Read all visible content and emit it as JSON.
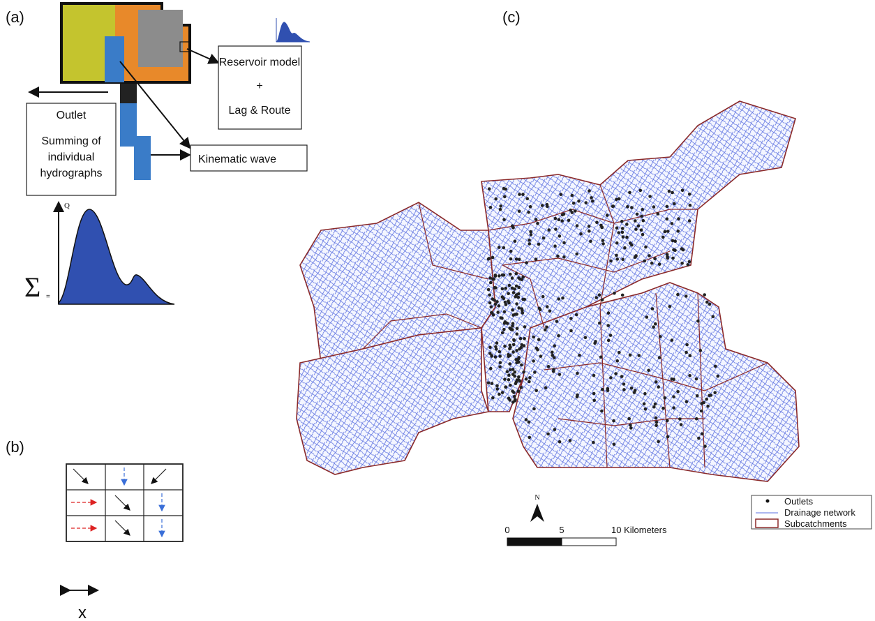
{
  "panels": {
    "a": {
      "label": "(a)",
      "reservoir_box": [
        "Reservoir model",
        "+",
        "Lag & Route"
      ],
      "kinematic_box": "Kinematic wave",
      "outlet_box": [
        "Outlet",
        "Summing of",
        "individual",
        "hydrographs"
      ],
      "hydrograph": {
        "axis_label": "Q",
        "sum_symbol": "Σ",
        "equals": "="
      }
    },
    "b": {
      "label": "(b)",
      "axis_label": "x"
    },
    "c": {
      "label": "(c)",
      "north": "N",
      "scale_labels": [
        "0",
        "5",
        "10 Kilometers"
      ],
      "legend": [
        "Outlets",
        "Drainage network",
        "Subcatchments"
      ]
    }
  }
}
